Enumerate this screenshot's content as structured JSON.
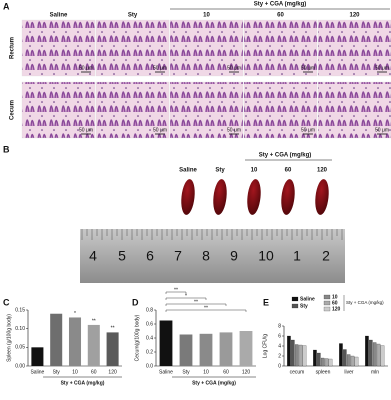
{
  "panel_a": {
    "letter": "A",
    "group_label": "Sty + CGA (mg/kg)",
    "columns": [
      "Saline",
      "Sty",
      "10",
      "60",
      "120"
    ],
    "rows": [
      "Rectum",
      "Cecum"
    ],
    "scale_label": "50 μm"
  },
  "panel_b": {
    "letter": "B",
    "group_label": "Sty + CGA (mg/kg)",
    "columns": [
      "Saline",
      "Sty",
      "10",
      "60",
      "120"
    ],
    "ruler": [
      "4",
      "5",
      "6",
      "7",
      "8",
      "9",
      "10",
      "1",
      "2"
    ]
  },
  "chart_data": [
    {
      "type": "bar",
      "panel": "C",
      "ylabel": "Spleen (g/100g body)",
      "categories": [
        "Saline",
        "Sty",
        "10",
        "60",
        "120"
      ],
      "values": [
        0.05,
        0.14,
        0.13,
        0.11,
        0.09
      ],
      "colors": [
        "#111111",
        "#6e6e6e",
        "#8a8a8a",
        "#a0a0a0",
        "#5a5a5a"
      ],
      "ylim": [
        0,
        0.15
      ],
      "yticks": [
        {
          "value": 0,
          "label": "0.00"
        },
        0.05,
        {
          "value": 0.1,
          "label": "0.10"
        },
        0.15
      ],
      "group_label": "Sty + CGA (mg/kg)",
      "group_start": 2,
      "bar_stars": [
        "*",
        "**",
        "**"
      ]
    },
    {
      "type": "bar",
      "panel": "D",
      "ylabel": "Cecum(g/100g body)",
      "categories": [
        "Saline",
        "Sty",
        "10",
        "60",
        "120"
      ],
      "values": [
        0.65,
        0.45,
        0.46,
        0.48,
        0.5
      ],
      "colors": [
        "#111111",
        "#7a7a7a",
        "#8a8a8a",
        "#9a9a9a",
        "#aaaaaa"
      ],
      "ylim": [
        0,
        0.8
      ],
      "yticks": [
        {
          "value": 0,
          "label": "0.0"
        },
        0.2,
        0.4,
        0.6,
        0.8
      ],
      "group_label": "Sty + CGA (mg/kg)",
      "group_start": 2,
      "brackets": [
        "**",
        "*",
        "**",
        "**"
      ]
    },
    {
      "type": "grouped_bar",
      "panel": "E",
      "ylabel": "Log CFU/g",
      "categories": [
        "cecum",
        "spleen",
        "liver",
        "mln"
      ],
      "ylim": [
        0,
        8
      ],
      "yticks": [
        0,
        2,
        4,
        6,
        8
      ],
      "legend_group_label": "Sty + CGA (mg/kg)",
      "series": [
        {
          "name": "Saline",
          "color": "#111111",
          "values": [
            6.0,
            3.2,
            4.5,
            6.0
          ]
        },
        {
          "name": "Sty",
          "color": "#555555",
          "values": [
            5.2,
            2.6,
            3.3,
            5.2
          ]
        },
        {
          "name": "10",
          "color": "#888888",
          "values": [
            4.3,
            1.6,
            2.3,
            4.7
          ]
        },
        {
          "name": "60",
          "color": "#aaaaaa",
          "values": [
            4.2,
            1.5,
            2.0,
            4.4
          ]
        },
        {
          "name": "120",
          "color": "#cccccc",
          "values": [
            4.1,
            1.4,
            1.8,
            4.1
          ]
        }
      ]
    }
  ]
}
